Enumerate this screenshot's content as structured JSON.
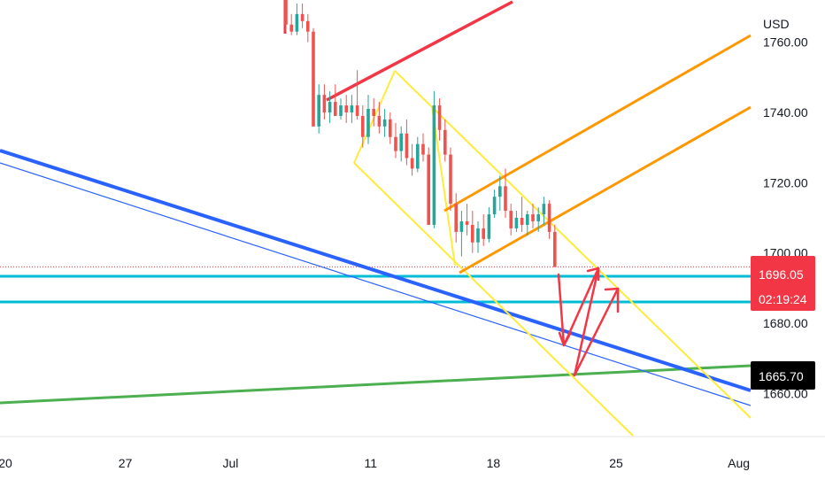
{
  "chart_data": {
    "type": "candlestick",
    "currency": "USD",
    "y_ticks": [
      {
        "value": 1760,
        "label": "1760.00"
      },
      {
        "value": 1740,
        "label": "1740.00"
      },
      {
        "value": 1720,
        "label": "1720.00"
      },
      {
        "value": 1700,
        "label": "1700.00"
      },
      {
        "value": 1680,
        "label": "1680.00"
      },
      {
        "value": 1660,
        "label": "1660.00"
      }
    ],
    "x_ticks": [
      "20",
      "27",
      "Jul",
      "11",
      "18",
      "25",
      "Aug"
    ],
    "ylim": [
      1648,
      1772
    ],
    "current_price": {
      "label": "1696.05",
      "countdown": "02:19:24",
      "value": 1696.05,
      "color": "#f23645"
    },
    "level_label": {
      "label": "1665.70",
      "value": 1665.7,
      "color": "#000000"
    },
    "grid": false,
    "colors": {
      "up": "#26a69a",
      "down": "#ef5350",
      "blue_trend": "#2962ff",
      "cyan_levels": "#00bcd4",
      "green_trend": "#4caf50",
      "yellow_channel": "#ffeb3b",
      "orange_channel": "#ff9800",
      "red_channel": "#f23645"
    },
    "candles": [
      [
        1772,
        1772,
        1763,
        1765
      ],
      [
        1765,
        1768,
        1762,
        1763
      ],
      [
        1763,
        1771,
        1762,
        1768
      ],
      [
        1768,
        1771,
        1764,
        1766
      ],
      [
        1766,
        1768,
        1760,
        1763
      ],
      [
        1763,
        1764,
        1736,
        1736
      ],
      [
        1736,
        1748,
        1734,
        1745
      ],
      [
        1745,
        1748,
        1738,
        1740
      ],
      [
        1740,
        1746,
        1737,
        1743
      ],
      [
        1743,
        1748,
        1739,
        1739
      ],
      [
        1739,
        1744,
        1738,
        1742
      ],
      [
        1742,
        1745,
        1737,
        1740
      ],
      [
        1740,
        1745,
        1737,
        1742
      ],
      [
        1742,
        1752,
        1738,
        1739
      ],
      [
        1739,
        1742,
        1730,
        1733
      ],
      [
        1733,
        1745,
        1731,
        1741
      ],
      [
        1741,
        1744,
        1736,
        1739
      ],
      [
        1739,
        1743,
        1734,
        1736
      ],
      [
        1736,
        1741,
        1733,
        1738
      ],
      [
        1738,
        1740,
        1731,
        1733
      ],
      [
        1733,
        1737,
        1727,
        1729
      ],
      [
        1729,
        1736,
        1726,
        1734
      ],
      [
        1734,
        1738,
        1725,
        1727
      ],
      [
        1727,
        1731,
        1722,
        1724
      ],
      [
        1724,
        1733,
        1723,
        1731
      ],
      [
        1731,
        1734,
        1726,
        1728
      ],
      [
        1728,
        1730,
        1708,
        1708
      ],
      [
        1708,
        1746,
        1707,
        1742
      ],
      [
        1742,
        1744,
        1732,
        1735
      ],
      [
        1735,
        1738,
        1726,
        1728
      ],
      [
        1728,
        1730,
        1712,
        1714
      ],
      [
        1714,
        1717,
        1703,
        1706
      ],
      [
        1706,
        1712,
        1699,
        1709
      ],
      [
        1709,
        1714,
        1705,
        1708
      ],
      [
        1708,
        1712,
        1700,
        1703
      ],
      [
        1703,
        1709,
        1700,
        1707
      ],
      [
        1707,
        1711,
        1702,
        1704
      ],
      [
        1704,
        1713,
        1703,
        1711
      ],
      [
        1711,
        1718,
        1710,
        1716
      ],
      [
        1716,
        1722,
        1712,
        1719
      ],
      [
        1719,
        1724,
        1710,
        1712
      ],
      [
        1712,
        1714,
        1705,
        1707
      ],
      [
        1707,
        1712,
        1706,
        1710
      ],
      [
        1710,
        1716,
        1706,
        1708
      ],
      [
        1708,
        1712,
        1705,
        1711
      ],
      [
        1711,
        1714,
        1707,
        1709
      ],
      [
        1709,
        1713,
        1706,
        1711
      ],
      [
        1711,
        1716,
        1708,
        1714
      ],
      [
        1714,
        1715,
        1704,
        1706
      ],
      [
        1706,
        1708,
        1696,
        1696
      ]
    ]
  },
  "chart_meta": {
    "price_range": [
      1648,
      1772
    ],
    "time_range": [
      0,
      77
    ],
    "tick_positions": [
      {
        "value": 0,
        "label": "20"
      },
      {
        "value": 7,
        "label": "27"
      },
      {
        "value": 13,
        "label": "Jul"
      },
      {
        "value": 21,
        "label": "11"
      },
      {
        "value": 28,
        "label": "18"
      },
      {
        "value": 35,
        "label": "25"
      },
      {
        "value": 42,
        "label": "Aug"
      }
    ]
  }
}
